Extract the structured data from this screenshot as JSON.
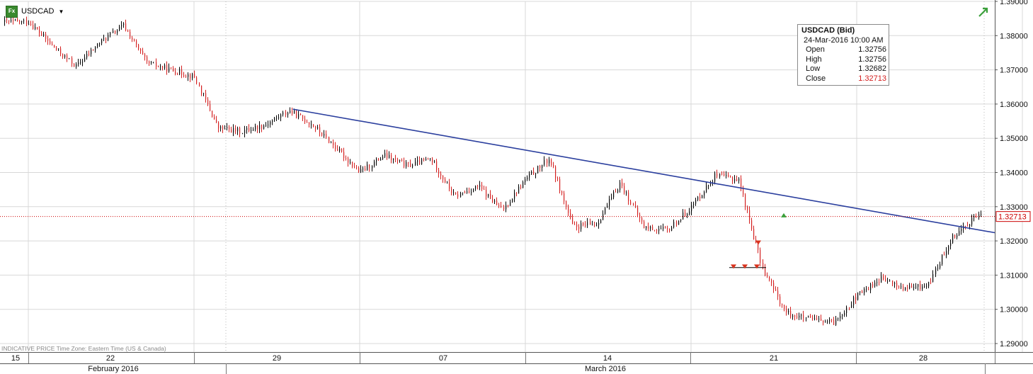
{
  "instrument": {
    "symbol": "USDCAD",
    "badge": "Fx"
  },
  "info_box": {
    "title": "USDCAD (Bid)",
    "date": "24-Mar-2016 10:00 AM",
    "rows": [
      {
        "label": "Open",
        "value": "1.32756"
      },
      {
        "label": "High",
        "value": "1.32756"
      },
      {
        "label": "Low",
        "value": "1.32682"
      },
      {
        "label": "Close",
        "value": "1.32713"
      }
    ]
  },
  "footer_note": "INDICATIVE PRICE   Time Zone: Eastern Time (US & Canada)",
  "colors": {
    "up_candle": "#000000",
    "down_candle": "#d42020",
    "trendline": "#2b3f9e",
    "last_price_line": "#cc0000",
    "grid": "#d8d8d8",
    "sell_marker": "#d9341e",
    "buy_marker": "#3aa03a"
  },
  "chart_data": {
    "type": "candlestick",
    "y_axis": {
      "range": [
        1.2875,
        1.3905
      ],
      "ticks": [
        "1.29000",
        "1.30000",
        "1.31000",
        "1.32000",
        "1.33000",
        "1.34000",
        "1.35000",
        "1.36000",
        "1.37000",
        "1.38000",
        "1.39000"
      ],
      "tick_values": [
        1.29,
        1.3,
        1.31,
        1.32,
        1.33,
        1.34,
        1.35,
        1.36,
        1.37,
        1.38,
        1.39
      ]
    },
    "x_axis": {
      "day_labels": [
        "15",
        "22",
        "29",
        "07",
        "14",
        "21",
        "28"
      ],
      "month_labels": [
        "February 2016",
        "March 2016"
      ]
    },
    "last_price": {
      "value": 1.32713,
      "label": "1.32713"
    },
    "trendline": {
      "from": {
        "date": "2016-02-26",
        "price": 1.3585
      },
      "to": {
        "date": "2016-03-31",
        "price": 1.3224
      }
    },
    "anchors": [
      {
        "date": "2016-02-15",
        "price": 1.384
      },
      {
        "date": "2016-02-16",
        "price": 1.377
      },
      {
        "date": "2016-02-17",
        "price": 1.371
      },
      {
        "date": "2016-02-18",
        "price": 1.378
      },
      {
        "date": "2016-02-19",
        "price": 1.383
      },
      {
        "date": "2016-02-20",
        "price": 1.372
      },
      {
        "date": "2016-02-22",
        "price": 1.368
      },
      {
        "date": "2016-02-23",
        "price": 1.353
      },
      {
        "date": "2016-02-24",
        "price": 1.352
      },
      {
        "date": "2016-02-25",
        "price": 1.354
      },
      {
        "date": "2016-02-26",
        "price": 1.358
      },
      {
        "date": "2016-02-27",
        "price": 1.354
      },
      {
        "date": "2016-02-29",
        "price": 1.34
      },
      {
        "date": "2016-03-01",
        "price": 1.345
      },
      {
        "date": "2016-03-02",
        "price": 1.342
      },
      {
        "date": "2016-03-03",
        "price": 1.344
      },
      {
        "date": "2016-03-04",
        "price": 1.333
      },
      {
        "date": "2016-03-05",
        "price": 1.336
      },
      {
        "date": "2016-03-06",
        "price": 1.329
      },
      {
        "date": "2016-03-07",
        "price": 1.338
      },
      {
        "date": "2016-03-08",
        "price": 1.344
      },
      {
        "date": "2016-03-09",
        "price": 1.324
      },
      {
        "date": "2016-03-10",
        "price": 1.325
      },
      {
        "date": "2016-03-11",
        "price": 1.337
      },
      {
        "date": "2016-03-12",
        "price": 1.324
      },
      {
        "date": "2016-03-13",
        "price": 1.323
      },
      {
        "date": "2016-03-14",
        "price": 1.33
      },
      {
        "date": "2016-03-15",
        "price": 1.339
      },
      {
        "date": "2016-03-16",
        "price": 1.338
      },
      {
        "date": "2016-03-17",
        "price": 1.312
      },
      {
        "date": "2016-03-18",
        "price": 1.299
      },
      {
        "date": "2016-03-19",
        "price": 1.297
      },
      {
        "date": "2016-03-20",
        "price": 1.296
      },
      {
        "date": "2016-03-21",
        "price": 1.304
      },
      {
        "date": "2016-03-22",
        "price": 1.309
      },
      {
        "date": "2016-03-23",
        "price": 1.306
      },
      {
        "date": "2016-03-24",
        "price": 1.307
      },
      {
        "date": "2016-03-25",
        "price": 1.321
      },
      {
        "date": "2016-03-26",
        "price": 1.3271
      }
    ],
    "trade_markers": [
      {
        "type": "sell",
        "date": "2016-03-21",
        "price": 1.3125
      },
      {
        "type": "sell",
        "date": "2016-03-22",
        "price": 1.3125
      },
      {
        "type": "sell",
        "date": "2016-03-23",
        "price": 1.3125
      },
      {
        "type": "sell",
        "date": "2016-03-24",
        "price": 1.3195
      },
      {
        "type": "buy",
        "date": "2016-03-25",
        "price": 1.3275
      }
    ]
  }
}
